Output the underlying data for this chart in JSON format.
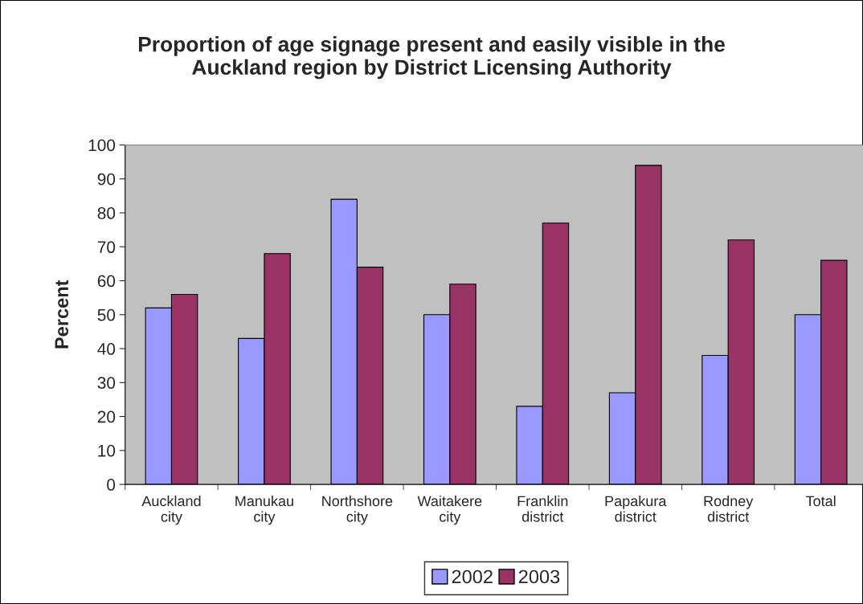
{
  "chart_data": {
    "type": "bar",
    "title": "Proportion of age signage present and easily visible in the\nAuckland region by District Licensing Authority",
    "ylabel": "Percent",
    "categories": [
      "Auckland\ncity",
      "Manukau\ncity",
      "Northshore\ncity",
      "Waitakere\ncity",
      "Franklin\ndistrict",
      "Papakura\ndistrict",
      "Rodney\ndistrict",
      "Total"
    ],
    "series": [
      {
        "name": "2002",
        "color": "#9999ff",
        "values": [
          52,
          43,
          84,
          50,
          23,
          27,
          38,
          50
        ]
      },
      {
        "name": "2003",
        "color": "#993366",
        "values": [
          56,
          68,
          64,
          59,
          77,
          94,
          72,
          66
        ]
      }
    ],
    "ylim": [
      0,
      100
    ],
    "yticks": [
      0,
      10,
      20,
      30,
      40,
      50,
      60,
      70,
      80,
      90,
      100
    ],
    "grid": false,
    "legend": "bottom"
  }
}
